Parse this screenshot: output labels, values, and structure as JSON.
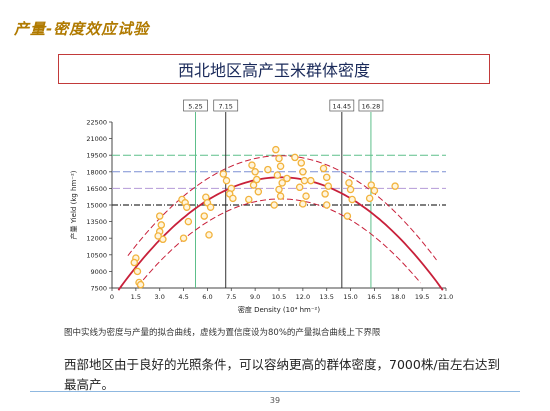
{
  "slide": {
    "header": "产量-密度效应试验",
    "box_title": "西北地区高产玉米群体密度",
    "caption": "图中实线为密度与产量的拟合曲线，虚线为置信度设为80%的产量拟合曲线上下界限",
    "body": "西部地区由于良好的光照条件，可以容纳更高的群体密度，7000株/亩左右达到最高产。",
    "page_number": "39"
  },
  "colors": {
    "header": "#b07a00",
    "box_border": "#c23a3a",
    "curve": "#c8203a",
    "points": "#f2b33d",
    "green_line": "#5dbf8a",
    "blue_line": "#7b8fd4",
    "purple_line": "#b49ad8",
    "black_line": "#333333"
  },
  "chart_data": {
    "type": "scatter",
    "xlabel": "密度 Density (10⁴ hm⁻²)",
    "ylabel": "产量 Yield (kg hm⁻²)",
    "xlim": [
      0,
      21.0
    ],
    "ylim": [
      7500,
      22500
    ],
    "x_ticks": [
      "0",
      "1.5",
      "3.0",
      "4.5",
      "6.0",
      "7.5",
      "9.0",
      "10.5",
      "12.0",
      "13.5",
      "15.0",
      "16.5",
      "18.0",
      "19.5",
      "21.0"
    ],
    "y_ticks": [
      "7500",
      "9000",
      "10500",
      "12000",
      "13500",
      "15000",
      "16500",
      "18000",
      "19500",
      "21000",
      "22500"
    ],
    "vertical_markers": [
      {
        "label": "5.25",
        "x": 5.25
      },
      {
        "label": "7.15",
        "x": 7.15
      },
      {
        "label": "14.45",
        "x": 14.45
      },
      {
        "label": "16.28",
        "x": 16.28
      }
    ],
    "horizontal_lines": [
      {
        "y": 19500,
        "color": "green"
      },
      {
        "y": 18000,
        "color": "blue"
      },
      {
        "y": 16500,
        "color": "purple"
      },
      {
        "y": 15000,
        "color": "black"
      }
    ],
    "fit_peak": {
      "x": 10.6,
      "y": 17500
    },
    "points": [
      [
        1.5,
        10200
      ],
      [
        1.4,
        9800
      ],
      [
        1.6,
        9000
      ],
      [
        1.7,
        8000
      ],
      [
        1.8,
        7800
      ],
      [
        3.0,
        14000
      ],
      [
        3.1,
        13200
      ],
      [
        3.0,
        12600
      ],
      [
        3.2,
        11900
      ],
      [
        2.9,
        12200
      ],
      [
        4.4,
        15500
      ],
      [
        4.6,
        15200
      ],
      [
        4.7,
        14800
      ],
      [
        4.5,
        12000
      ],
      [
        4.8,
        13500
      ],
      [
        5.9,
        15700
      ],
      [
        6.0,
        15200
      ],
      [
        6.2,
        14800
      ],
      [
        6.1,
        12300
      ],
      [
        5.8,
        14000
      ],
      [
        7.2,
        17200
      ],
      [
        7.5,
        16500
      ],
      [
        7.4,
        16000
      ],
      [
        7.6,
        15600
      ],
      [
        7.0,
        17800
      ],
      [
        8.8,
        18600
      ],
      [
        9.0,
        18000
      ],
      [
        9.1,
        17300
      ],
      [
        8.9,
        16800
      ],
      [
        9.2,
        16200
      ],
      [
        8.6,
        15500
      ],
      [
        10.3,
        20000
      ],
      [
        10.5,
        19200
      ],
      [
        10.6,
        18500
      ],
      [
        10.4,
        17700
      ],
      [
        10.7,
        17000
      ],
      [
        10.5,
        16400
      ],
      [
        10.6,
        15800
      ],
      [
        10.2,
        15000
      ],
      [
        11.5,
        19300
      ],
      [
        11.9,
        18800
      ],
      [
        12.0,
        18000
      ],
      [
        12.1,
        17200
      ],
      [
        11.8,
        16600
      ],
      [
        12.2,
        15800
      ],
      [
        12.0,
        15100
      ],
      [
        13.3,
        18300
      ],
      [
        13.5,
        17500
      ],
      [
        13.6,
        16700
      ],
      [
        13.4,
        16000
      ],
      [
        13.5,
        15000
      ],
      [
        14.9,
        17000
      ],
      [
        15.0,
        16400
      ],
      [
        15.1,
        15500
      ],
      [
        14.8,
        14000
      ],
      [
        16.3,
        16800
      ],
      [
        16.5,
        16300
      ],
      [
        16.2,
        15600
      ],
      [
        17.8,
        16700
      ],
      [
        11.0,
        17400
      ],
      [
        12.5,
        17200
      ],
      [
        9.8,
        18200
      ]
    ]
  }
}
